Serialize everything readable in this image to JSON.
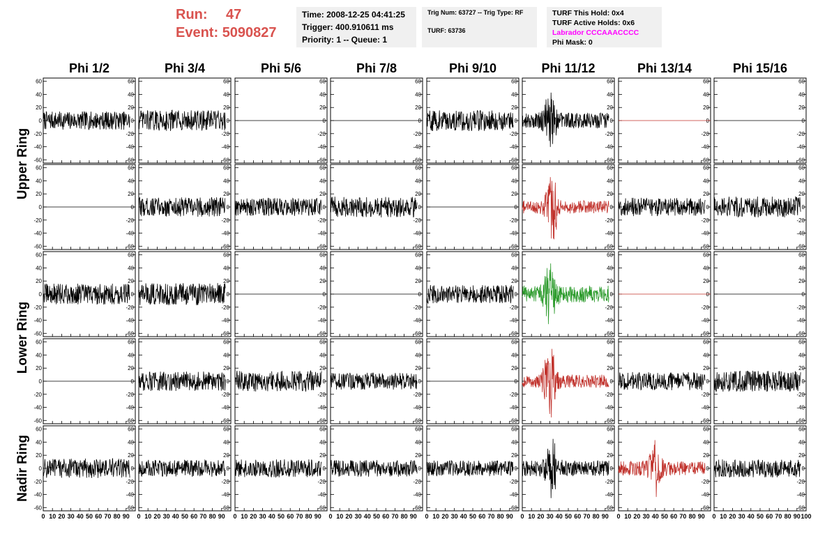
{
  "header": {
    "run_label": "Run:",
    "run_value": "47",
    "event_label": "Event:",
    "event_value": "5090827",
    "time": "Time: 2008-12-25 04:41:25",
    "trigger": "Trigger: 400.910611 ms",
    "priority": "Priority: 1 -- Queue: 1",
    "trig_num": "Trig Num: 63727 -- Trig Type: RF",
    "turf": "TURF: 63736",
    "turf_this_hold": "TURF This Hold: 0x4",
    "turf_active_holds": "TURF Active Holds: 0x6",
    "labrador": "Labrador CCCAAACCCC",
    "phi_mask": "Phi Mask: 0"
  },
  "colors": {
    "header_red": "#d9534f",
    "trace_black": "#000000",
    "trace_red": "#c0302a",
    "trace_green": "#2a9a2a",
    "info_bg": "#f0f0f0"
  },
  "chart_data": {
    "type": "line",
    "columns": [
      "Phi 1/2",
      "Phi 3/4",
      "Phi 5/6",
      "Phi 7/8",
      "Phi 9/10",
      "Phi 11/12",
      "Phi 13/14",
      "Phi 15/16"
    ],
    "row_groups": [
      {
        "label": "Upper Ring",
        "rows": [
          0,
          1
        ]
      },
      {
        "label": "Lower Ring",
        "rows": [
          2,
          3
        ]
      },
      {
        "label": "Nadir Ring",
        "rows": [
          4
        ]
      }
    ],
    "xlim": [
      0,
      100
    ],
    "ylim": [
      -65,
      65
    ],
    "x_ticks": [
      0,
      10,
      20,
      30,
      40,
      50,
      60,
      70,
      80,
      90,
      100
    ],
    "y_ticks": [
      -60,
      -40,
      -20,
      0,
      20,
      40,
      60
    ],
    "panels": [
      [
        {
          "state": "noise",
          "color": "black",
          "amp": 14
        },
        {
          "state": "noise",
          "color": "black",
          "amp": 16
        },
        {
          "state": "flat",
          "color": "black"
        },
        {
          "state": "flat",
          "color": "black"
        },
        {
          "state": "noise",
          "color": "black",
          "amp": 16
        },
        {
          "state": "burst",
          "color": "black",
          "amp": 12,
          "burst_center": 30,
          "burst_amp": 38
        },
        {
          "state": "flat",
          "color": "red"
        },
        {
          "state": "flat",
          "color": "black"
        }
      ],
      [
        {
          "state": "flat",
          "color": "black"
        },
        {
          "state": "noise",
          "color": "black",
          "amp": 15
        },
        {
          "state": "noise",
          "color": "black",
          "amp": 14
        },
        {
          "state": "noise",
          "color": "black",
          "amp": 16
        },
        {
          "state": "flat",
          "color": "black"
        },
        {
          "state": "burst",
          "color": "red",
          "amp": 10,
          "burst_center": 32,
          "burst_amp": 50
        },
        {
          "state": "noise",
          "color": "black",
          "amp": 14
        },
        {
          "state": "noise",
          "color": "black",
          "amp": 16
        }
      ],
      [
        {
          "state": "noise",
          "color": "black",
          "amp": 16
        },
        {
          "state": "noise",
          "color": "black",
          "amp": 17
        },
        {
          "state": "flat",
          "color": "black"
        },
        {
          "state": "flat",
          "color": "black"
        },
        {
          "state": "noise",
          "color": "black",
          "amp": 14
        },
        {
          "state": "burst",
          "color": "green",
          "amp": 13,
          "burst_center": 30,
          "burst_amp": 36
        },
        {
          "state": "flat",
          "color": "red"
        },
        {
          "state": "flat",
          "color": "black"
        }
      ],
      [
        {
          "state": "flat",
          "color": "black"
        },
        {
          "state": "noise",
          "color": "black",
          "amp": 15
        },
        {
          "state": "noise",
          "color": "black",
          "amp": 16
        },
        {
          "state": "noise",
          "color": "black",
          "amp": 13
        },
        {
          "state": "flat",
          "color": "black"
        },
        {
          "state": "burst",
          "color": "red",
          "amp": 10,
          "burst_center": 30,
          "burst_amp": 50
        },
        {
          "state": "noise",
          "color": "black",
          "amp": 14
        },
        {
          "state": "noise",
          "color": "black",
          "amp": 16
        }
      ],
      [
        {
          "state": "noise",
          "color": "black",
          "amp": 15
        },
        {
          "state": "noise",
          "color": "black",
          "amp": 13
        },
        {
          "state": "noise",
          "color": "black",
          "amp": 14
        },
        {
          "state": "noise",
          "color": "black",
          "amp": 13
        },
        {
          "state": "noise",
          "color": "black",
          "amp": 12
        },
        {
          "state": "burst",
          "color": "black",
          "amp": 12,
          "burst_center": 32,
          "burst_amp": 35
        },
        {
          "state": "burst",
          "color": "red",
          "amp": 11,
          "burst_center": 40,
          "burst_amp": 35
        },
        {
          "state": "noise",
          "color": "black",
          "amp": 14
        }
      ]
    ]
  }
}
